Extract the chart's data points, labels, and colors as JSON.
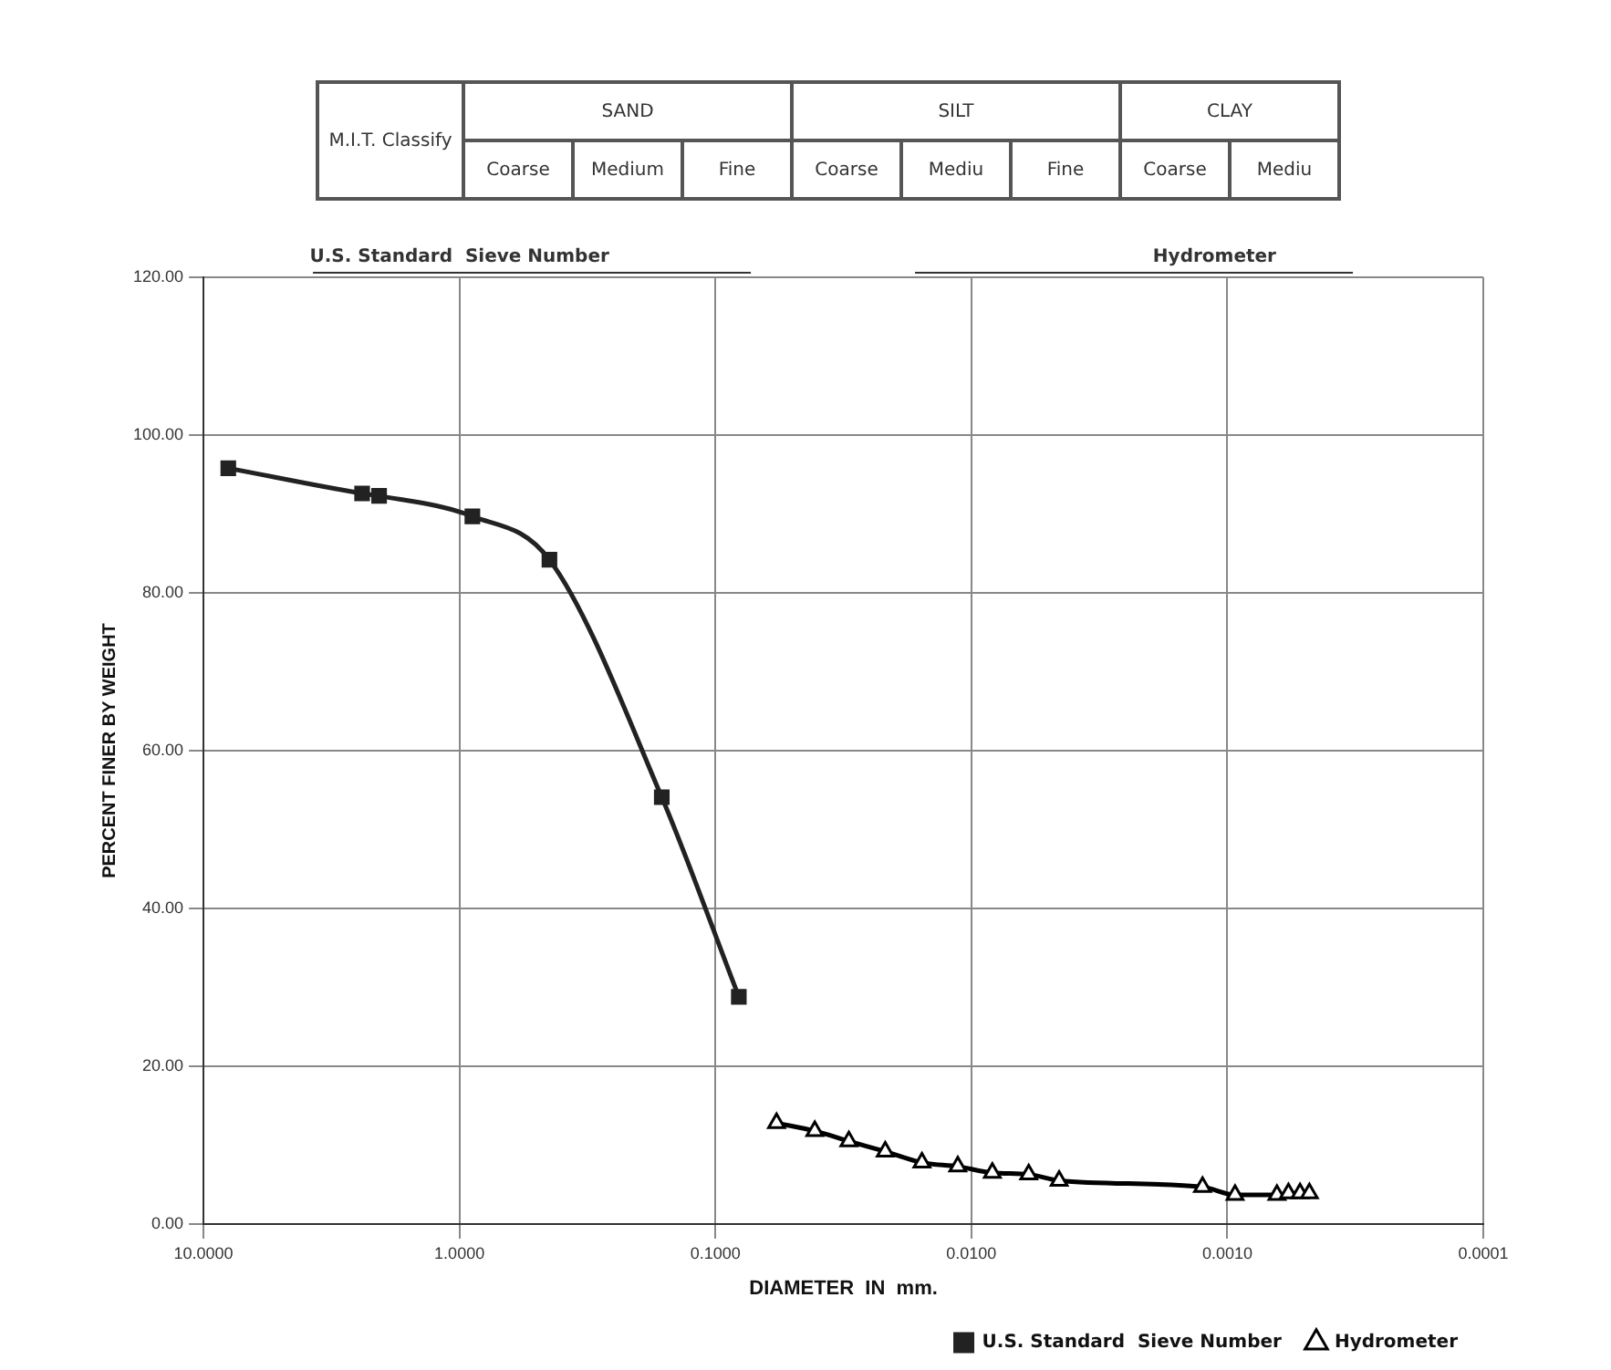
{
  "chart_data": {
    "type": "line",
    "xlabel": "DIAMETER  IN  mm.",
    "ylabel": "PERCENT FINER BY WEIGHT",
    "annotations": [
      "M.I.T. Classify",
      "SAND",
      "SILT",
      "CLAY",
      "Coarse",
      "Medium",
      "Fine",
      "Coarse",
      "Mediu",
      "Fine",
      "Coarse",
      "Mediu",
      "U.S. Standard  Sieve Number",
      "Hydrometer"
    ],
    "series": [
      {
        "name": "U.S. Standard  Sieve Number",
        "color": "#222222",
        "marker": "square",
        "x": [
          8.0,
          2.4,
          2.06,
          0.89,
          0.445,
          0.162,
          0.081
        ],
        "values": [
          95.8,
          92.6,
          92.3,
          89.7,
          84.2,
          54.1,
          28.8
        ]
      },
      {
        "name": "Hydrometer",
        "color": "#000000",
        "marker": "triangle",
        "x": [
          0.0577,
          0.0409,
          0.0301,
          0.0217,
          0.0156,
          0.0113,
          0.00828,
          0.00597,
          0.00454,
          0.00125,
          0.000933,
          0.00064,
          0.000577,
          0.00052,
          0.000478
        ],
        "values": [
          12.8,
          11.8,
          10.5,
          9.2,
          7.8,
          7.3,
          6.5,
          6.3,
          5.5,
          4.7,
          3.7,
          3.7,
          3.9,
          3.9,
          3.9
        ]
      }
    ],
    "log": "x",
    "xlim": [
      10,
      0.0001
    ],
    "xticks": [
      {
        "value": 10,
        "label": "10.0000"
      },
      {
        "value": 1,
        "label": "1.0000"
      },
      {
        "value": 0.1,
        "label": "0.1000"
      },
      {
        "value": 0.01,
        "label": "0.0100"
      },
      {
        "value": 0.001,
        "label": "0.0010"
      },
      {
        "value": 0.0001,
        "label": "0.0001"
      }
    ],
    "ylim": [
      0,
      120
    ],
    "yticks": [
      {
        "value": 0,
        "label": "0.00"
      },
      {
        "value": 20,
        "label": "20.00"
      },
      {
        "value": 40,
        "label": "40.00"
      },
      {
        "value": 60,
        "label": "60.00"
      },
      {
        "value": 80,
        "label": "80.00"
      },
      {
        "value": 100,
        "label": "100.00"
      },
      {
        "value": 120,
        "label": "120.00"
      }
    ],
    "grid": true,
    "legend": "bottom right"
  }
}
